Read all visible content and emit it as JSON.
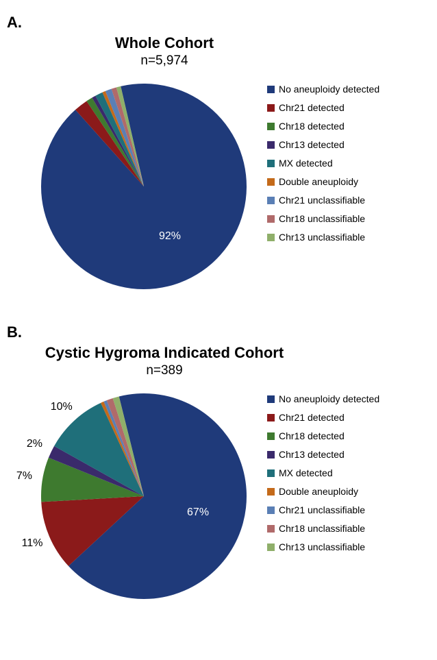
{
  "panelA": {
    "panel_label": "A.",
    "title": "Whole Cohort",
    "subtitle": "n=5,974",
    "type": "pie",
    "start_angle_deg": -13,
    "radius": 150,
    "background_color": "#ffffff",
    "title_fontsize": 22,
    "subtitle_fontsize": 19,
    "label_fontsize": 16,
    "legend_fontsize": 14,
    "slices": [
      {
        "label": "No aneuploidy detected",
        "value": 92.0,
        "color": "#1f3a7a",
        "show_pct": true,
        "pct_text": "92%",
        "pct_color": "#ffffff"
      },
      {
        "label": "Chr21 detected",
        "value": 2.2,
        "color": "#8b1a1a",
        "show_pct": false
      },
      {
        "label": "Chr18 detected",
        "value": 1.0,
        "color": "#3e7a2f",
        "show_pct": false
      },
      {
        "label": "Chr13 detected",
        "value": 0.6,
        "color": "#3a2a6b",
        "show_pct": false
      },
      {
        "label": "MX detected",
        "value": 1.2,
        "color": "#1f6f7a",
        "show_pct": false
      },
      {
        "label": "Double aneuploidy",
        "value": 0.5,
        "color": "#c46a1a",
        "show_pct": false
      },
      {
        "label": "Chr21 unclassifiable",
        "value": 1.0,
        "color": "#5a7fb5",
        "show_pct": false
      },
      {
        "label": "Chr18 unclassifiable",
        "value": 0.8,
        "color": "#b06a6a",
        "show_pct": false
      },
      {
        "label": "Chr13 unclassifiable",
        "value": 0.7,
        "color": "#8faf6a",
        "show_pct": false
      }
    ]
  },
  "panelB": {
    "panel_label": "B.",
    "title": "Cystic Hygroma Indicated Cohort",
    "subtitle": "n=389",
    "type": "pie",
    "start_angle_deg": -14,
    "radius": 150,
    "background_color": "#ffffff",
    "title_fontsize": 22,
    "subtitle_fontsize": 19,
    "label_fontsize": 16,
    "legend_fontsize": 14,
    "slices": [
      {
        "label": "No aneuploidy detected",
        "value": 67.0,
        "color": "#1f3a7a",
        "show_pct": true,
        "pct_text": "67%",
        "pct_color": "#ffffff"
      },
      {
        "label": "Chr21 detected",
        "value": 11.0,
        "color": "#8b1a1a",
        "show_pct": true,
        "pct_text": "11%",
        "pct_color": "#000000"
      },
      {
        "label": "Chr18 detected",
        "value": 7.0,
        "color": "#3e7a2f",
        "show_pct": true,
        "pct_text": "7%",
        "pct_color": "#000000"
      },
      {
        "label": "Chr13 detected",
        "value": 2.0,
        "color": "#3a2a6b",
        "show_pct": true,
        "pct_text": "2%",
        "pct_color": "#000000"
      },
      {
        "label": "MX detected",
        "value": 10.0,
        "color": "#1f6f7a",
        "show_pct": true,
        "pct_text": "10%",
        "pct_color": "#000000"
      },
      {
        "label": "Double aneuploidy",
        "value": 0.5,
        "color": "#c46a1a",
        "show_pct": false
      },
      {
        "label": "Chr21 unclassifiable",
        "value": 0.5,
        "color": "#5a7fb5",
        "show_pct": false
      },
      {
        "label": "Chr18 unclassifiable",
        "value": 1.0,
        "color": "#b06a6a",
        "show_pct": false
      },
      {
        "label": "Chr13 unclassifiable",
        "value": 1.0,
        "color": "#8faf6a",
        "show_pct": false
      }
    ]
  }
}
